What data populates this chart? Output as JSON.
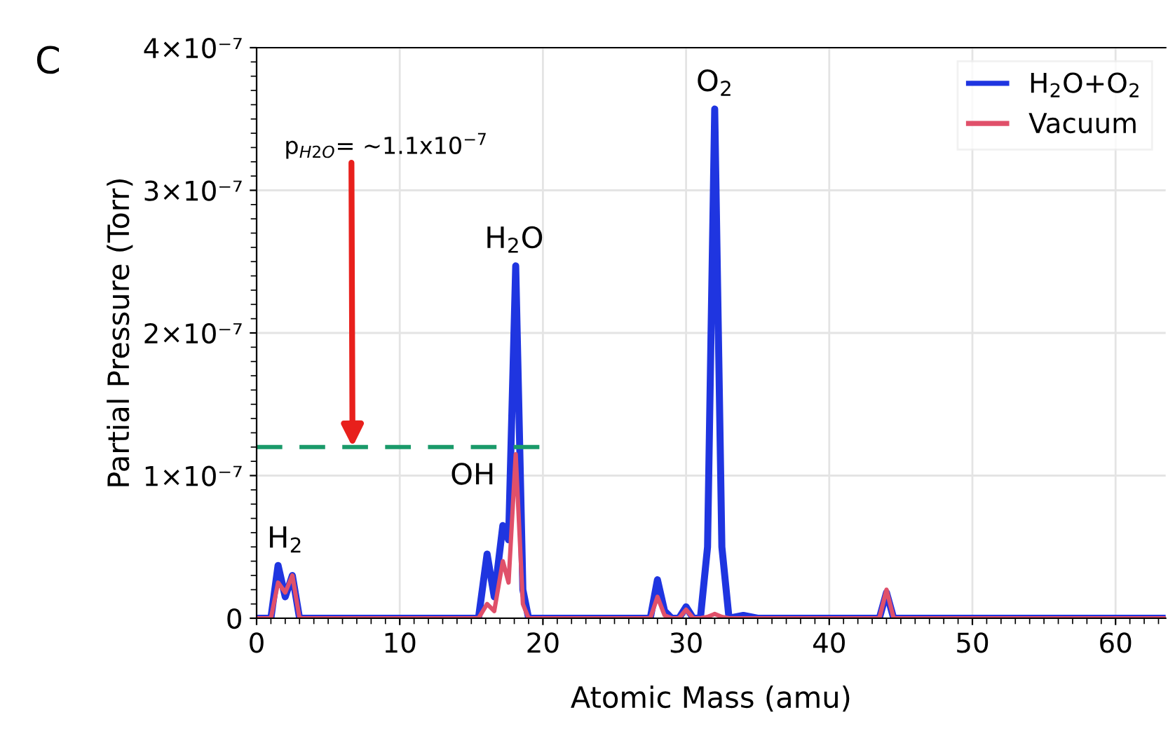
{
  "chart_data": {
    "type": "line",
    "title": "C",
    "xlabel": "Atomic Mass (amu)",
    "ylabel": "Partial Pressure (Torr)",
    "xlim": [
      0,
      63.5
    ],
    "xticks": [
      0,
      10,
      20,
      30,
      40,
      50,
      60
    ],
    "ylim": [
      0,
      4e-07
    ],
    "yticks": [
      {
        "value": 0,
        "label": "0"
      },
      {
        "value": 1e-07,
        "label": "1×10⁻⁷"
      },
      {
        "value": 2e-07,
        "label": "2×10⁻⁷"
      },
      {
        "value": 3e-07,
        "label": "3×10⁻⁷"
      },
      {
        "value": 4e-07,
        "label": "4×10⁻⁷"
      }
    ],
    "grid": true,
    "legend": "top right",
    "marker": "none",
    "line_style": "solid",
    "series": [
      {
        "name": "H$_{2}$O+O$_{2}$",
        "color": "#1f35e0",
        "x": [
          0,
          1,
          1.5,
          2,
          2.5,
          3,
          15,
          15.5,
          16.1,
          16.6,
          17.2,
          17.6,
          18.1,
          18.6,
          19,
          27,
          27.5,
          28,
          28.5,
          29,
          29.5,
          30,
          30.5,
          31,
          31.5,
          32,
          32.5,
          33,
          34,
          35,
          43,
          43.5,
          44,
          44.5,
          45,
          63.5
        ],
        "values": [
          0,
          0,
          3.7e-08,
          1.5e-08,
          3e-08,
          0,
          0,
          0,
          4.5e-08,
          1.5e-08,
          6.5e-08,
          5.5e-08,
          2.47e-07,
          2e-08,
          0,
          0,
          0,
          2.7e-08,
          5e-09,
          0,
          0,
          8e-09,
          0,
          0,
          5e-08,
          3.57e-07,
          5e-08,
          0,
          2e-09,
          0,
          0,
          0,
          1.8e-08,
          0,
          0,
          0
        ]
      },
      {
        "name": "Vacuum",
        "color": "#e0506a",
        "x": [
          0,
          1,
          1.5,
          2,
          2.5,
          3,
          15,
          15.5,
          16.1,
          16.6,
          17.2,
          17.6,
          18.1,
          18.6,
          19,
          27,
          27.5,
          28,
          28.5,
          29,
          29.5,
          30,
          30.5,
          31,
          31.5,
          32,
          32.5,
          33,
          34,
          35,
          43,
          43.5,
          44,
          44.5,
          45,
          63.5
        ],
        "values": [
          0,
          0,
          2.5e-08,
          1.8e-08,
          3e-08,
          0,
          0,
          0,
          1e-08,
          5e-09,
          4e-08,
          2.5e-08,
          1.15e-07,
          1e-08,
          0,
          0,
          0,
          1.5e-08,
          2e-09,
          0,
          0,
          6e-09,
          0,
          0,
          1e-09,
          3e-09,
          1e-09,
          0,
          0,
          0,
          0,
          0,
          2e-08,
          0,
          0,
          0
        ]
      },
      {
        "type": "line",
        "color": "#1a9a6a",
        "line_style": "dashed",
        "x": [
          0,
          20
        ],
        "values": [
          1.2e-07,
          1.2e-07
        ]
      }
    ],
    "annotations": [
      {
        "text": "p$_{H2O}$= ~1.1x10$^{−7}$",
        "x": 6.7,
        "y": 1.2e-07
      },
      {
        "text": "H$_{2}$",
        "x": 2,
        "y": 3.7e-08
      },
      {
        "text": "OH",
        "x": 17,
        "y": 6.5e-08
      },
      {
        "text": "H$_{2}$O",
        "x": 18,
        "y": 2.47e-07
      },
      {
        "text": "O$_{2}$",
        "x": 32,
        "y": 3.57e-07
      }
    ]
  }
}
